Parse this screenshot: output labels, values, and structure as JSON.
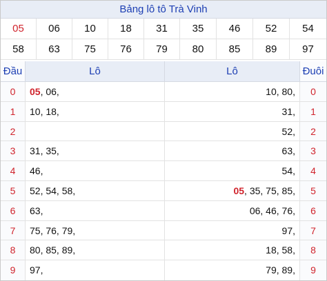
{
  "title": "Bảng lô tô Trà Vinh",
  "numbers": {
    "row1": [
      "05",
      "06",
      "10",
      "18",
      "31",
      "35",
      "46",
      "52",
      "54"
    ],
    "row2": [
      "58",
      "63",
      "75",
      "76",
      "79",
      "80",
      "85",
      "89",
      "97"
    ]
  },
  "highlight_number": "05",
  "headers": {
    "dau": "Đầu",
    "lo_left": "Lô",
    "lo_right": "Lô",
    "duoi": "Đuôi"
  },
  "rows": [
    {
      "dau": "0",
      "lo_left_hl": "05",
      "lo_left": ", 06,",
      "lo_right_hl": "",
      "lo_right": "10, 80,",
      "duoi": "0"
    },
    {
      "dau": "1",
      "lo_left_hl": "",
      "lo_left": "10, 18,",
      "lo_right_hl": "",
      "lo_right": "31,",
      "duoi": "1"
    },
    {
      "dau": "2",
      "lo_left_hl": "",
      "lo_left": "",
      "lo_right_hl": "",
      "lo_right": "52,",
      "duoi": "2"
    },
    {
      "dau": "3",
      "lo_left_hl": "",
      "lo_left": "31, 35,",
      "lo_right_hl": "",
      "lo_right": "63,",
      "duoi": "3"
    },
    {
      "dau": "4",
      "lo_left_hl": "",
      "lo_left": "46,",
      "lo_right_hl": "",
      "lo_right": "54,",
      "duoi": "4"
    },
    {
      "dau": "5",
      "lo_left_hl": "",
      "lo_left": "52, 54, 58,",
      "lo_right_hl": "05",
      "lo_right": ", 35, 75, 85,",
      "duoi": "5"
    },
    {
      "dau": "6",
      "lo_left_hl": "",
      "lo_left": "63,",
      "lo_right_hl": "",
      "lo_right": "06, 46, 76,",
      "duoi": "6"
    },
    {
      "dau": "7",
      "lo_left_hl": "",
      "lo_left": "75, 76, 79,",
      "lo_right_hl": "",
      "lo_right": "97,",
      "duoi": "7"
    },
    {
      "dau": "8",
      "lo_left_hl": "",
      "lo_left": "80, 85, 89,",
      "lo_right_hl": "",
      "lo_right": "18, 58,",
      "duoi": "8"
    },
    {
      "dau": "9",
      "lo_left_hl": "",
      "lo_left": "97,",
      "lo_right_hl": "",
      "lo_right": "79, 89,",
      "duoi": "9"
    }
  ]
}
